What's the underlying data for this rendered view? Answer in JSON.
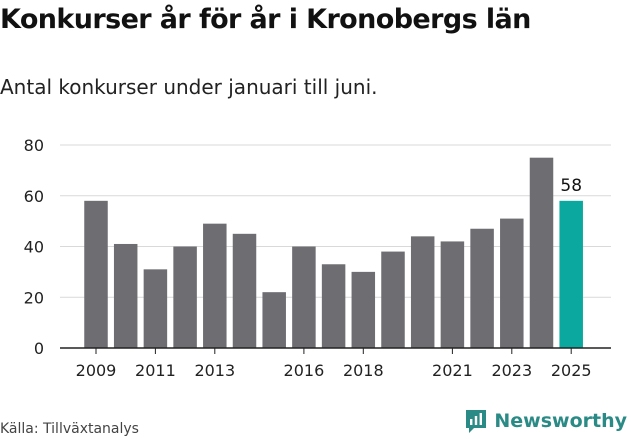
{
  "title": "Konkurser år för år i Kronobergs län",
  "subtitle": "Antal konkurser under januari till juni.",
  "source": "Källa: Tillväxtanalys",
  "brand": {
    "name": "Newsworthy",
    "icon": "newsworthy-logo-icon"
  },
  "colors": {
    "bar": "#6e6d72",
    "highlight": "#0aa89e",
    "grid": "#d9d9d9",
    "axis": "#222222",
    "brand": "#2a8a86"
  },
  "chart_data": {
    "type": "bar",
    "categories": [
      "2009",
      "2010",
      "2011",
      "2012",
      "2013",
      "2014",
      "2015",
      "2016",
      "2017",
      "2018",
      "2019",
      "2020",
      "2021",
      "2022",
      "2023",
      "2024",
      "2025"
    ],
    "values": [
      58,
      41,
      31,
      40,
      49,
      45,
      22,
      40,
      33,
      30,
      38,
      44,
      42,
      47,
      51,
      75,
      58
    ],
    "x_tick_labels": [
      "2009",
      "2011",
      "2013",
      "2016",
      "2018",
      "2021",
      "2023",
      "2025"
    ],
    "y_ticks": [
      "0",
      "20",
      "40",
      "60",
      "80"
    ],
    "ylim": [
      0,
      80
    ],
    "highlight_category": "2025",
    "highlight_label": "58",
    "grid": true,
    "title": "Konkurser år för år i Kronobergs län",
    "subtitle": "Antal konkurser under januari till juni.",
    "xlabel": "",
    "ylabel": ""
  }
}
